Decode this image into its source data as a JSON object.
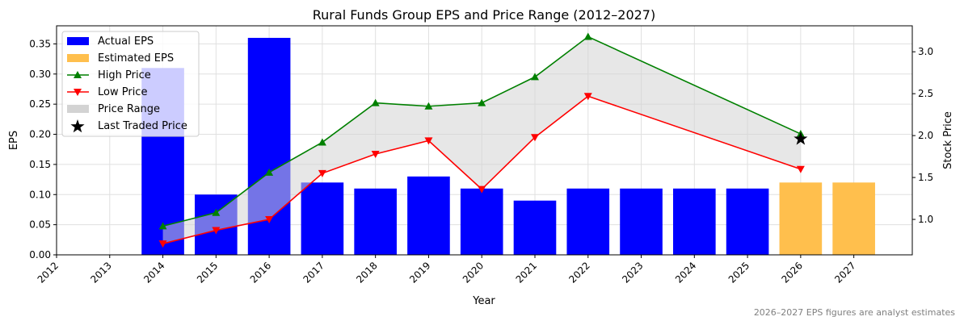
{
  "chart_data": {
    "type": "bar+line",
    "title": "Rural Funds Group EPS and Price Range (2012–2027)",
    "xlabel": "Year",
    "ylabel": "EPS",
    "y2label": "Stock Price",
    "footnote": "2026–2027 EPS figures are analyst estimates",
    "categories": [
      "2012",
      "2013",
      "2014",
      "2015",
      "2016",
      "2017",
      "2018",
      "2019",
      "2020",
      "2021",
      "2022",
      "2023",
      "2024",
      "2025",
      "2026",
      "2027"
    ],
    "xlim": [
      2012,
      2028.1
    ],
    "ylim": [
      0,
      0.38
    ],
    "y2lim": [
      0.577,
      3.31
    ],
    "yticks": [
      "0.00",
      "0.05",
      "0.10",
      "0.15",
      "0.20",
      "0.25",
      "0.30",
      "0.35"
    ],
    "y2ticks": [
      "1.0",
      "1.5",
      "2.0",
      "2.5",
      "3.0"
    ],
    "grid": true,
    "legend_placement": "top-left",
    "colors": {
      "actual": "#0000ff",
      "estimated": "#ffbf4d",
      "high": "#008000",
      "low": "#ff0000",
      "range": "#d3d3d3",
      "last": "#000000"
    },
    "actual_eps": {
      "name": "Actual EPS",
      "x": [
        2014,
        2015,
        2016,
        2017,
        2018,
        2019,
        2020,
        2021,
        2022,
        2023,
        2024,
        2025
      ],
      "values": [
        0.31,
        0.1,
        0.36,
        0.12,
        0.11,
        0.13,
        0.11,
        0.09,
        0.11,
        0.11,
        0.11,
        0.11
      ]
    },
    "estimated_eps": {
      "name": "Estimated EPS",
      "x": [
        2026,
        2027
      ],
      "values": [
        0.12,
        0.12
      ]
    },
    "high_price": {
      "name": "High Price",
      "x": [
        2014,
        2015,
        2016,
        2017,
        2018,
        2019,
        2020,
        2021,
        2022,
        2026
      ],
      "values": [
        0.92,
        1.08,
        1.56,
        1.92,
        2.39,
        2.35,
        2.39,
        2.7,
        3.18,
        2.02
      ]
    },
    "low_price": {
      "name": "Low Price",
      "x": [
        2014,
        2015,
        2016,
        2017,
        2018,
        2019,
        2020,
        2021,
        2022,
        2026
      ],
      "values": [
        0.71,
        0.87,
        1.0,
        1.55,
        1.78,
        1.94,
        1.36,
        1.98,
        2.47,
        1.6
      ]
    },
    "price_range": {
      "name": "Price Range"
    },
    "last_traded": {
      "name": "Last Traded Price",
      "x": 2026,
      "value": 1.96
    }
  }
}
